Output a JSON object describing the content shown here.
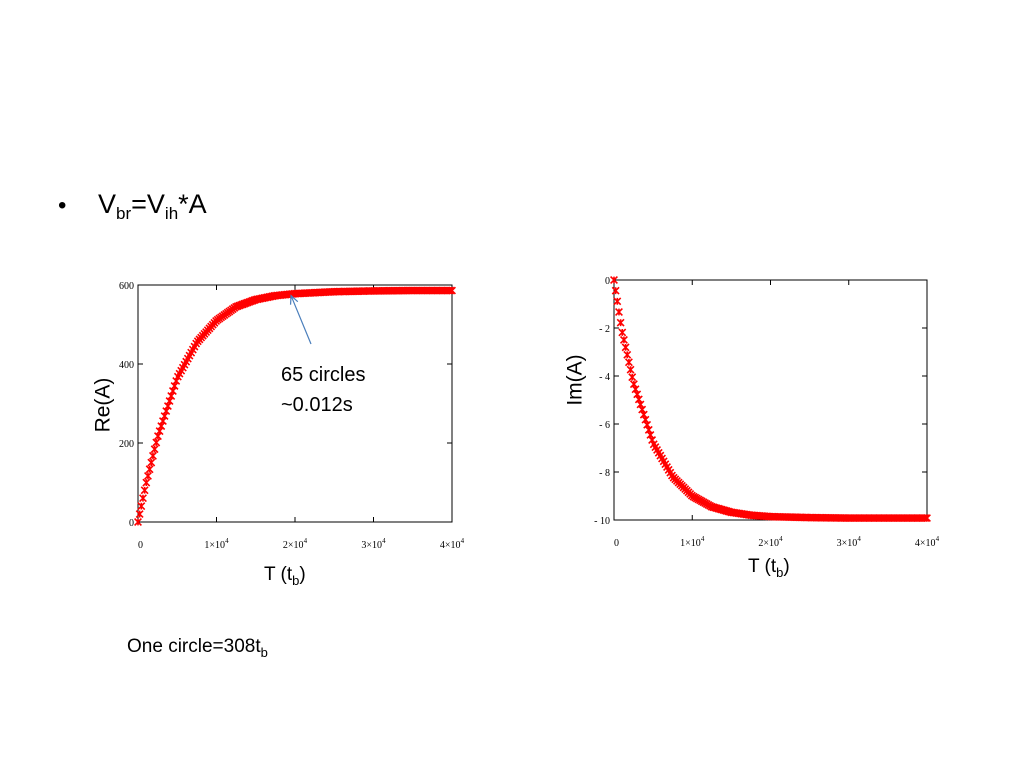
{
  "slide": {
    "bullet": {
      "symbol": "•",
      "parts": [
        "V",
        "br",
        "=V",
        "ih",
        "*A"
      ]
    },
    "footnote": {
      "text": "One circle=308t",
      "sub": "b"
    }
  },
  "chart_data": [
    {
      "type": "scatter",
      "marker": "x",
      "color": "#ff0000",
      "ylabel": "Re(A)",
      "xlabel": "T (t",
      "xlabel_sub": "b",
      "xlim": [
        0,
        40000
      ],
      "ylim": [
        0,
        600
      ],
      "x_ticks": [
        {
          "value": 0,
          "label": "0"
        },
        {
          "value": 10000,
          "label": "1×10",
          "exp": "4"
        },
        {
          "value": 20000,
          "label": "2×10",
          "exp": "4"
        },
        {
          "value": 30000,
          "label": "3×10",
          "exp": "4"
        },
        {
          "value": 40000,
          "label": "4×10",
          "exp": "4"
        }
      ],
      "y_ticks": [
        {
          "value": 0,
          "label": "0"
        },
        {
          "value": 200,
          "label": "200"
        },
        {
          "value": 400,
          "label": "400"
        },
        {
          "value": 600,
          "label": "600"
        }
      ],
      "series": [
        {
          "model": "saturating_exponential",
          "x_end": 40000,
          "points": 190,
          "x": [
            0,
            1000,
            2500,
            5000,
            7500,
            10000,
            12500,
            15000,
            17500,
            20000,
            25000,
            30000,
            35000,
            40000
          ],
          "y": [
            0,
            95,
            215,
            365,
            455,
            510,
            545,
            563,
            573,
            578,
            583,
            585,
            586,
            586
          ]
        }
      ],
      "annotation": {
        "lines": [
          "65 circles",
          "~0.012s"
        ],
        "target": {
          "x": 19500,
          "y": 578
        }
      }
    },
    {
      "type": "scatter",
      "marker": "x",
      "color": "#ff0000",
      "ylabel": "Im(A)",
      "xlabel": "T (t",
      "xlabel_sub": "b",
      "xlim": [
        0,
        40000
      ],
      "ylim": [
        -10,
        0
      ],
      "x_ticks": [
        {
          "value": 0,
          "label": "0"
        },
        {
          "value": 10000,
          "label": "1×10",
          "exp": "4"
        },
        {
          "value": 20000,
          "label": "2×10",
          "exp": "4"
        },
        {
          "value": 30000,
          "label": "3×10",
          "exp": "4"
        },
        {
          "value": 40000,
          "label": "4×10",
          "exp": "4"
        }
      ],
      "y_ticks": [
        {
          "value": 0,
          "label": "0"
        },
        {
          "value": -2,
          "label": "- 2"
        },
        {
          "value": -4,
          "label": "- 4"
        },
        {
          "value": -6,
          "label": "- 6"
        },
        {
          "value": -8,
          "label": "- 8"
        },
        {
          "value": -10,
          "label": "- 10"
        }
      ],
      "series": [
        {
          "model": "decaying_exponential",
          "x_end": 40000,
          "points": 190,
          "x": [
            0,
            1000,
            2500,
            5000,
            7500,
            10000,
            12500,
            15000,
            17500,
            20000,
            25000,
            30000,
            35000,
            40000
          ],
          "y": [
            0,
            -2.1,
            -4.3,
            -6.8,
            -8.2,
            -9.0,
            -9.45,
            -9.68,
            -9.8,
            -9.86,
            -9.9,
            -9.92,
            -9.92,
            -9.92
          ]
        }
      ]
    }
  ]
}
